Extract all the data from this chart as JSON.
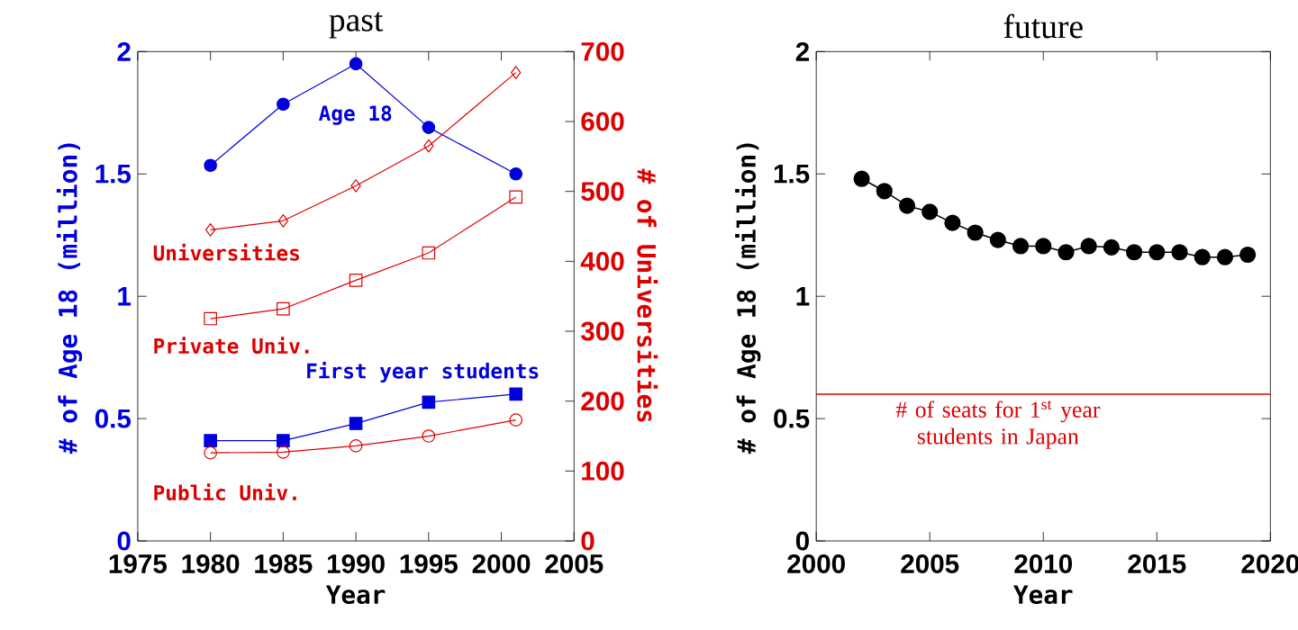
{
  "chart_data": [
    {
      "type": "line",
      "title": "past",
      "xlabel": "Year",
      "ylabel": "# of Age 18 (million)",
      "y2label": "# of Universities",
      "x": [
        1980,
        1985,
        1990,
        1995,
        2001
      ],
      "xlim": [
        1975,
        2005
      ],
      "xticks": [
        1975,
        1980,
        1985,
        1990,
        1995,
        2000,
        2005
      ],
      "ylim": [
        0,
        2
      ],
      "yticks": [
        0,
        0.5,
        1,
        1.5,
        2
      ],
      "y2lim": [
        0,
        700
      ],
      "y2ticks": [
        0,
        100,
        200,
        300,
        400,
        500,
        600,
        700
      ],
      "series": [
        {
          "name": "Age 18",
          "color": "#0000dd",
          "marker": "circle",
          "values": [
            1.535,
            1.785,
            1.95,
            1.69,
            1.5
          ]
        },
        {
          "name": "First year students",
          "color": "#0000dd",
          "marker": "square",
          "values": [
            0.41,
            0.41,
            0.48,
            0.567,
            0.6
          ]
        },
        {
          "name": "Universities",
          "color": "#dd0000",
          "marker": "diamond",
          "axis": "y2",
          "values": [
            445,
            458,
            508,
            565,
            670
          ]
        },
        {
          "name": "Private Univ.",
          "color": "#dd0000",
          "marker": "square",
          "axis": "y2",
          "values": [
            318,
            332,
            373,
            412,
            492
          ]
        },
        {
          "name": "Public Univ.",
          "color": "#dd0000",
          "marker": "circle",
          "axis": "y2",
          "values": [
            126,
            127,
            136,
            150,
            173
          ]
        }
      ]
    },
    {
      "type": "line",
      "title": "future",
      "xlabel": "Year",
      "ylabel": "# of Age 18 (million)",
      "x": [
        2002,
        2003,
        2004,
        2005,
        2006,
        2007,
        2008,
        2009,
        2010,
        2011,
        2012,
        2013,
        2014,
        2015,
        2016,
        2017,
        2018,
        2019
      ],
      "xlim": [
        2000,
        2020
      ],
      "xticks": [
        2000,
        2005,
        2010,
        2015,
        2020
      ],
      "ylim": [
        0,
        2
      ],
      "yticks": [
        0,
        0.5,
        1,
        1.5,
        2
      ],
      "series": [
        {
          "color": "#000000",
          "marker": "circle",
          "values": [
            1.48,
            1.43,
            1.37,
            1.345,
            1.3,
            1.26,
            1.23,
            1.205,
            1.205,
            1.18,
            1.205,
            1.2,
            1.18,
            1.18,
            1.18,
            1.16,
            1.16,
            1.17
          ]
        }
      ],
      "ref_lines": [
        {
          "axis": "y",
          "value": 0.6,
          "label": "# of seats for 1$^{st}$ year students in Japan",
          "color": "#dd0000"
        }
      ]
    }
  ]
}
